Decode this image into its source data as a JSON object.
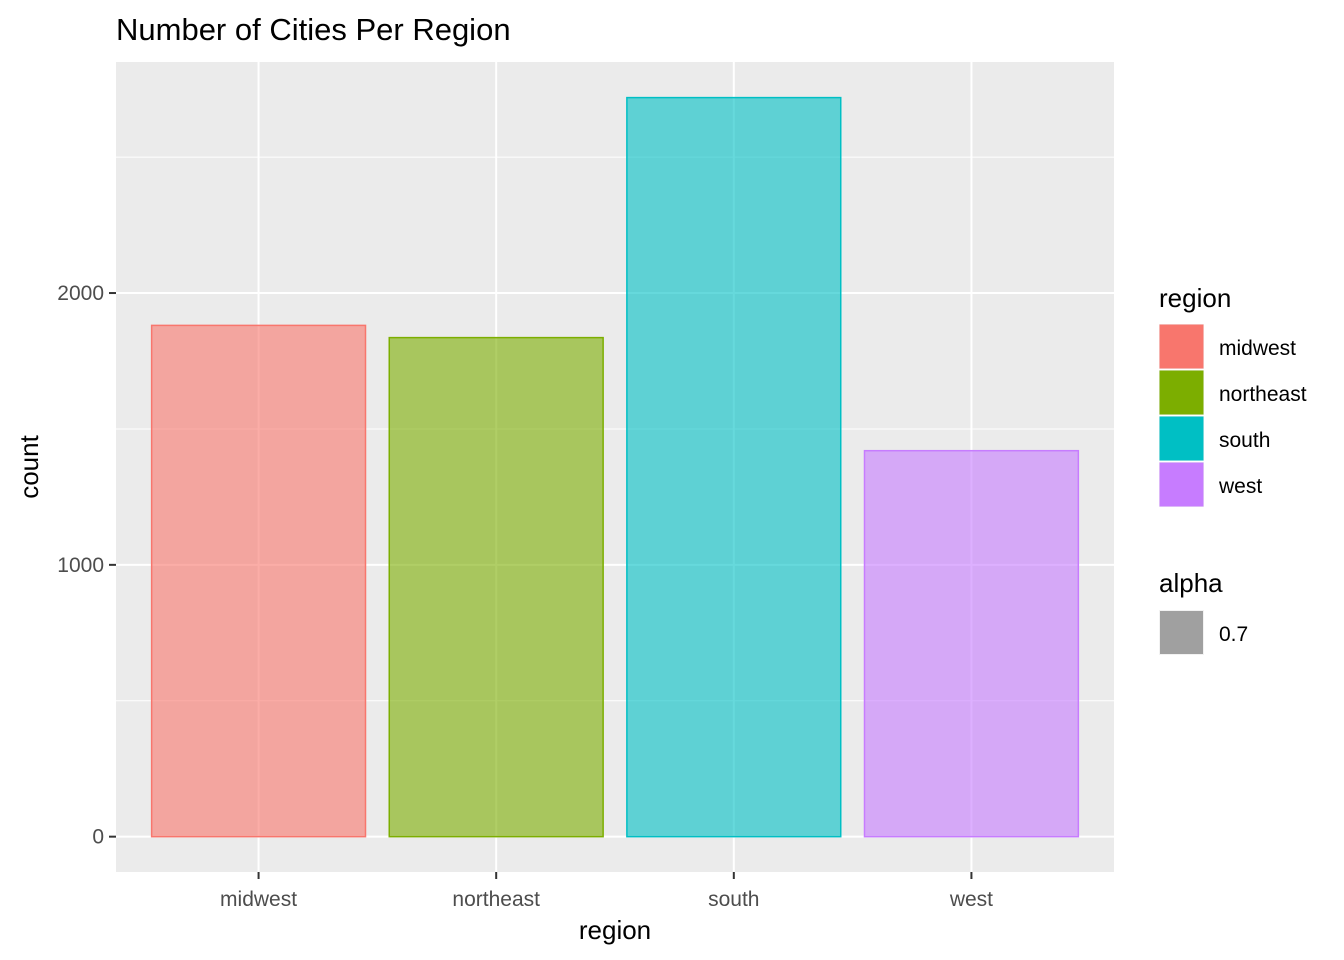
{
  "chart_data": {
    "type": "bar",
    "title": "Number of Cities Per Region",
    "xlabel": "region",
    "ylabel": "count",
    "categories": [
      "midwest",
      "northeast",
      "south",
      "west"
    ],
    "values": [
      1881,
      1836,
      2719,
      1420
    ],
    "colors": [
      "#F8766D",
      "#7CAE00",
      "#00BFC4",
      "#C77CFF"
    ],
    "fill_alpha": 0.6,
    "ylim": [
      -130,
      2850
    ],
    "yticks": [
      0,
      1000,
      2000
    ],
    "yticks_minor": [
      500,
      1500,
      2500
    ],
    "grid": true,
    "panel_background": "#EBEBEB",
    "legend_position": "right",
    "legends": [
      {
        "title": "region",
        "items": [
          "midwest",
          "northeast",
          "south",
          "west"
        ]
      },
      {
        "title": "alpha",
        "items": [
          "0.7"
        ],
        "swatch_color": "#A0A0A0"
      }
    ]
  }
}
